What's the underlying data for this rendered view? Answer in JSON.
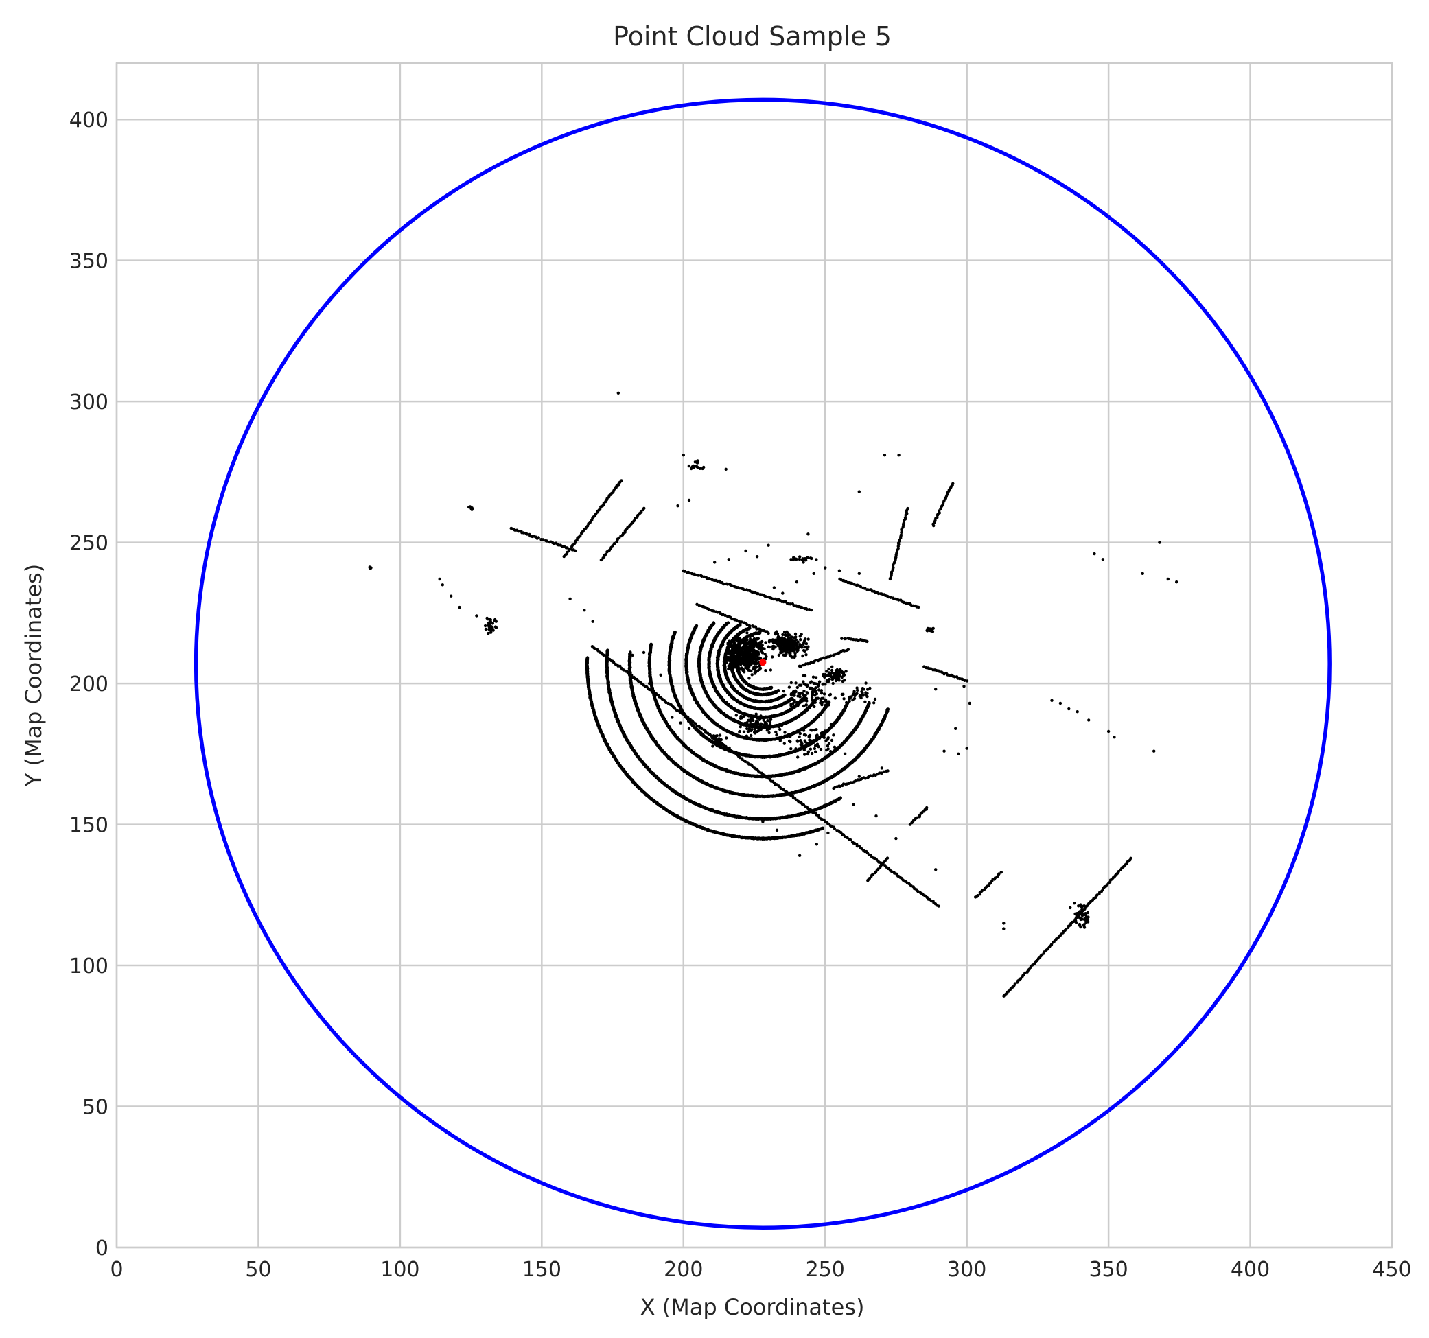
{
  "chart_data": {
    "type": "scatter",
    "title": "Point Cloud Sample 5",
    "xlabel": "X (Map Coordinates)",
    "ylabel": "Y (Map Coordinates)",
    "xlim": [
      0,
      450
    ],
    "ylim": [
      0,
      420
    ],
    "xticks": [
      0,
      50,
      100,
      150,
      200,
      250,
      300,
      350,
      400,
      450
    ],
    "yticks": [
      0,
      50,
      100,
      150,
      200,
      250,
      300,
      350,
      400
    ],
    "grid": true,
    "colors": {
      "points": "#000000",
      "circle": "#0000ff",
      "center": "#ff0000",
      "grid": "#cccccc",
      "background": "#ffffff"
    },
    "circle": {
      "center": [
        228,
        207
      ],
      "radius": 200
    },
    "center_marker": {
      "x": 228,
      "y": 207.5
    },
    "arcs": [
      {
        "center": [
          228,
          207
        ],
        "r": 9,
        "start": 100,
        "end": 290
      },
      {
        "center": [
          228,
          207
        ],
        "r": 11,
        "start": 95,
        "end": 300
      },
      {
        "center": [
          228,
          207
        ],
        "r": 13.5,
        "start": 110,
        "end": 305
      },
      {
        "center": [
          228,
          207
        ],
        "r": 16,
        "start": 120,
        "end": 310
      },
      {
        "center": [
          228,
          207
        ],
        "r": 19,
        "start": 130,
        "end": 320
      },
      {
        "center": [
          228,
          207
        ],
        "r": 22.5,
        "start": 140,
        "end": 325
      },
      {
        "center": [
          228,
          207
        ],
        "r": 27,
        "start": 150,
        "end": 330
      },
      {
        "center": [
          228,
          207
        ],
        "r": 33,
        "start": 160,
        "end": 335
      },
      {
        "center": [
          228,
          207
        ],
        "r": 40,
        "start": 170,
        "end": 340
      },
      {
        "center": [
          228,
          207
        ],
        "r": 47,
        "start": 175,
        "end": 340
      },
      {
        "center": [
          228,
          207
        ],
        "r": 55,
        "start": 175,
        "end": 300
      },
      {
        "center": [
          228,
          207
        ],
        "r": 62,
        "start": 178,
        "end": 290
      }
    ],
    "lines": [
      {
        "from": [
          168,
          213
        ],
        "to": [
          290,
          121
        ]
      },
      {
        "from": [
          158,
          245
        ],
        "to": [
          178,
          272
        ]
      },
      {
        "from": [
          171,
          244
        ],
        "to": [
          186,
          262
        ]
      },
      {
        "from": [
          139,
          255
        ],
        "to": [
          162,
          247
        ]
      },
      {
        "from": [
          200,
          240
        ],
        "to": [
          245,
          226
        ]
      },
      {
        "from": [
          205,
          228
        ],
        "to": [
          230,
          218
        ]
      },
      {
        "from": [
          255,
          237
        ],
        "to": [
          283,
          227
        ]
      },
      {
        "from": [
          300,
          201
        ],
        "to": [
          285,
          206
        ]
      },
      {
        "from": [
          303,
          124
        ],
        "to": [
          312,
          133
        ]
      },
      {
        "from": [
          313,
          89
        ],
        "to": [
          358,
          138
        ]
      },
      {
        "from": [
          273,
          237
        ],
        "to": [
          279,
          262
        ]
      },
      {
        "from": [
          288,
          256
        ],
        "to": [
          295,
          271
        ]
      },
      {
        "from": [
          265,
          130
        ],
        "to": [
          272,
          138
        ]
      },
      {
        "from": [
          280,
          150
        ],
        "to": [
          286,
          156
        ]
      },
      {
        "from": [
          253,
          163
        ],
        "to": [
          272,
          169
        ]
      },
      {
        "from": [
          241,
          206
        ],
        "to": [
          258,
          212
        ]
      },
      {
        "from": [
          256,
          216
        ],
        "to": [
          265,
          215
        ]
      }
    ],
    "clusters": [
      {
        "center": [
          222,
          210
        ],
        "spread": [
          10,
          9
        ],
        "count": 480
      },
      {
        "center": [
          237,
          214
        ],
        "spread": [
          9,
          6
        ],
        "count": 220
      },
      {
        "center": [
          245,
          196
        ],
        "spread": [
          12,
          8
        ],
        "count": 120
      },
      {
        "center": [
          253,
          203
        ],
        "spread": [
          7,
          4
        ],
        "count": 70
      },
      {
        "center": [
          226,
          185
        ],
        "spread": [
          10,
          5
        ],
        "count": 90
      },
      {
        "center": [
          244,
          180
        ],
        "spread": [
          14,
          8
        ],
        "count": 80
      },
      {
        "center": [
          262,
          196
        ],
        "spread": [
          8,
          5
        ],
        "count": 40
      },
      {
        "center": [
          340,
          118
        ],
        "spread": [
          5,
          6
        ],
        "count": 50
      },
      {
        "center": [
          132,
          221
        ],
        "spread": [
          3,
          4
        ],
        "count": 30
      },
      {
        "center": [
          125,
          262
        ],
        "spread": [
          1,
          1
        ],
        "count": 12
      },
      {
        "center": [
          89.5,
          241
        ],
        "spread": [
          0.6,
          0.5
        ],
        "count": 6
      },
      {
        "center": [
          287,
          219
        ],
        "spread": [
          2,
          1
        ],
        "count": 14
      },
      {
        "center": [
          242,
          244
        ],
        "spread": [
          6,
          1.5
        ],
        "count": 20
      },
      {
        "center": [
          205,
          277
        ],
        "spread": [
          5,
          2
        ],
        "count": 14
      },
      {
        "center": [
          212,
          180
        ],
        "spread": [
          5,
          3
        ],
        "count": 22
      }
    ],
    "points": [
      [
        177,
        303
      ],
      [
        200,
        281
      ],
      [
        205,
        279
      ],
      [
        215,
        276
      ],
      [
        244,
        253
      ],
      [
        262,
        268
      ],
      [
        271,
        281
      ],
      [
        276,
        281
      ],
      [
        202,
        265
      ],
      [
        198,
        263
      ],
      [
        118,
        231
      ],
      [
        121,
        227
      ],
      [
        127,
        224
      ],
      [
        114,
        237
      ],
      [
        115,
        235
      ],
      [
        160,
        230
      ],
      [
        165,
        226
      ],
      [
        168,
        222
      ],
      [
        182,
        210
      ],
      [
        186,
        211
      ],
      [
        345,
        246
      ],
      [
        348,
        244
      ],
      [
        368,
        250
      ],
      [
        362,
        239
      ],
      [
        371,
        237
      ],
      [
        374,
        236
      ],
      [
        330,
        194
      ],
      [
        333,
        193
      ],
      [
        336,
        191
      ],
      [
        339,
        190
      ],
      [
        343,
        187
      ],
      [
        350,
        183
      ],
      [
        352,
        181
      ],
      [
        366,
        176
      ],
      [
        297,
        175
      ],
      [
        292,
        176
      ],
      [
        296,
        184
      ],
      [
        289,
        198
      ],
      [
        299,
        199
      ],
      [
        301,
        193
      ],
      [
        241,
        139
      ],
      [
        247,
        143
      ],
      [
        251,
        147
      ],
      [
        228,
        151
      ],
      [
        233,
        148
      ],
      [
        289,
        134
      ],
      [
        300,
        177
      ],
      [
        196,
        188
      ],
      [
        199,
        186
      ],
      [
        202,
        184
      ],
      [
        188,
        200
      ],
      [
        192,
        203
      ],
      [
        245,
        155
      ],
      [
        255,
        159
      ],
      [
        260,
        157
      ],
      [
        262,
        167
      ],
      [
        270,
        170
      ],
      [
        313,
        115
      ],
      [
        313,
        113
      ],
      [
        257,
        175
      ],
      [
        268,
        153
      ],
      [
        275,
        145
      ],
      [
        232,
        234
      ],
      [
        235,
        232
      ],
      [
        240,
        236
      ],
      [
        246,
        239
      ],
      [
        250,
        241
      ],
      [
        255,
        240
      ],
      [
        262,
        239
      ],
      [
        211,
        243
      ],
      [
        216,
        244
      ],
      [
        222,
        247
      ],
      [
        226,
        245
      ],
      [
        230,
        249
      ]
    ]
  }
}
